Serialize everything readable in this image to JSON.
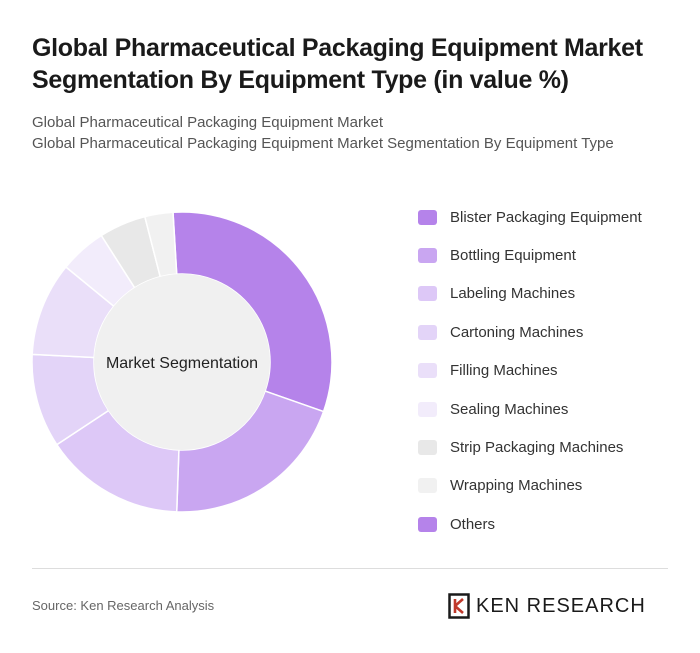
{
  "header": {
    "title": "Global Pharmaceutical Packaging Equipment Market Segmentation By Equipment Type (in value %)",
    "subtitle_line1": "Global Pharmaceutical Packaging Equipment Market",
    "subtitle_line2": "Global Pharmaceutical Packaging Equipment Market Segmentation By Equipment Type"
  },
  "chart_data": {
    "type": "pie",
    "variant": "donut",
    "center_label": "Market Segmentation",
    "legend_position": "right",
    "categories": [
      "Blister Packaging Equipment",
      "Bottling Equipment",
      "Labeling Machines",
      "Cartoning Machines",
      "Filling Machines",
      "Sealing Machines",
      "Strip Packaging Machines",
      "Wrapping Machines",
      "Others"
    ],
    "values": [
      31,
      20,
      15,
      10,
      10,
      5,
      5,
      3,
      0
    ],
    "colors": [
      "#b583ea",
      "#c9a6f1",
      "#ddc8f7",
      "#e3d4f8",
      "#eadff9",
      "#f2ecfb",
      "#e8e8e8",
      "#f1f1f1",
      "#b583ea"
    ]
  },
  "footer": {
    "source": "Source: Ken Research Analysis",
    "brand": "KEN RESEARCH",
    "brand_logo_icon": "ken-research-logo-icon"
  }
}
